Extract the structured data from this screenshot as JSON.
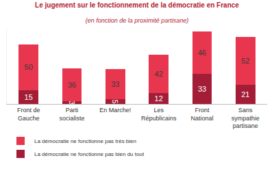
{
  "chart_data": {
    "type": "bar",
    "title": "Le jugement sur le fonctionnement de la démocratie en France",
    "subtitle": "(en fonction de la proximité partisane)",
    "categories": [
      "Front de Gauche",
      "Parti socialiste",
      "En Marche!",
      "Les Républicains",
      "Front National",
      "Sans sympathie partisane"
    ],
    "series": [
      {
        "name": "La démocratie ne fonctionne pas bien du tout",
        "color": "#a31d37",
        "values": [
          15,
          3,
          5,
          12,
          33,
          21
        ]
      },
      {
        "name": "La démocratie ne fonctionne pas très bien",
        "color": "#e8364f",
        "values": [
          50,
          36,
          33,
          42,
          46,
          52
        ]
      }
    ],
    "ylim": [
      0,
      82
    ],
    "stacked": true,
    "data_labels": true,
    "tick_labels": "x",
    "grid": false,
    "legend": "bottom"
  }
}
